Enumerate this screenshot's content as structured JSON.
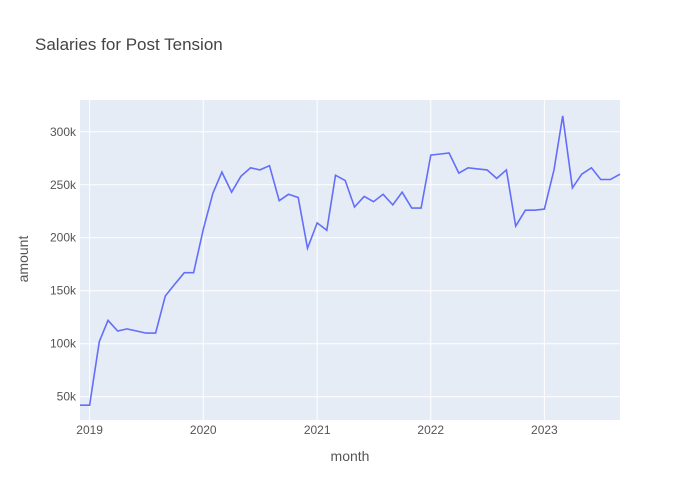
{
  "chart_data": {
    "type": "line",
    "title": "Salaries for Post Tension",
    "xlabel": "month",
    "ylabel": "amount",
    "xlim": [
      "2018-12-01",
      "2023-09-01"
    ],
    "ylim": [
      28000,
      330000
    ],
    "x_ticks": [
      "2019",
      "2020",
      "2021",
      "2022",
      "2023"
    ],
    "y_ticks": [
      {
        "value": 50000,
        "label": "50k"
      },
      {
        "value": 100000,
        "label": "100k"
      },
      {
        "value": 150000,
        "label": "150k"
      },
      {
        "value": 200000,
        "label": "200k"
      },
      {
        "value": 250000,
        "label": "250k"
      },
      {
        "value": 300000,
        "label": "300k"
      }
    ],
    "grid": true,
    "line_color": "#636efa",
    "plot_background": "#e5ecf6",
    "series": [
      {
        "x": [
          "2018-12-01",
          "2019-01-01",
          "2019-02-01",
          "2019-03-01",
          "2019-04-01",
          "2019-05-01",
          "2019-06-01",
          "2019-07-01",
          "2019-08-01",
          "2019-09-01",
          "2019-10-01",
          "2019-11-01",
          "2019-12-01",
          "2020-01-01",
          "2020-02-01",
          "2020-03-01",
          "2020-04-01",
          "2020-05-01",
          "2020-06-01",
          "2020-07-01",
          "2020-08-01",
          "2020-09-01",
          "2020-10-01",
          "2020-11-01",
          "2020-12-01",
          "2021-01-01",
          "2021-02-01",
          "2021-03-01",
          "2021-04-01",
          "2021-05-01",
          "2021-06-01",
          "2021-07-01",
          "2021-08-01",
          "2021-09-01",
          "2021-10-01",
          "2021-11-01",
          "2021-12-01",
          "2022-01-01",
          "2022-02-01",
          "2022-03-01",
          "2022-04-01",
          "2022-05-01",
          "2022-06-01",
          "2022-07-01",
          "2022-08-01",
          "2022-09-01",
          "2022-10-01",
          "2022-11-01",
          "2022-12-01",
          "2023-01-01",
          "2023-02-01",
          "2023-03-01",
          "2023-04-01",
          "2023-05-01",
          "2023-06-01",
          "2023-07-01",
          "2023-08-01",
          "2023-09-01"
        ],
        "y": [
          42000,
          42000,
          102000,
          122000,
          112000,
          114000,
          112000,
          110000,
          110000,
          145000,
          156000,
          167000,
          167000,
          208000,
          242000,
          262000,
          243000,
          258000,
          266000,
          264000,
          268000,
          235000,
          241000,
          238000,
          190000,
          214000,
          207000,
          259000,
          254000,
          229000,
          239000,
          234000,
          241000,
          231000,
          243000,
          228000,
          228000,
          278000,
          279000,
          280000,
          261000,
          266000,
          265000,
          264000,
          256000,
          264000,
          211000,
          226000,
          226000,
          227000,
          264000,
          315000,
          247000,
          260000,
          266000,
          255000,
          255000,
          260000
        ]
      }
    ]
  }
}
